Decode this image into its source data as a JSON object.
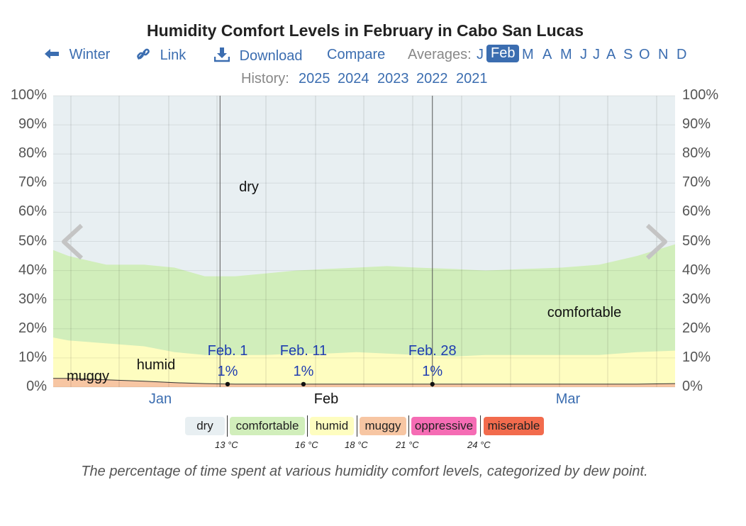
{
  "title": "Humidity Comfort Levels in February in Cabo San Lucas",
  "nav": {
    "winter": "Winter",
    "link": "Link",
    "download": "Download",
    "compare": "Compare",
    "averages_label": "Averages:",
    "months": [
      "J",
      "Feb",
      "M",
      "A",
      "M",
      "J",
      "J",
      "A",
      "S",
      "O",
      "N",
      "D"
    ],
    "selected_month": "Feb"
  },
  "history": {
    "label": "History:",
    "years": [
      "2025",
      "2024",
      "2023",
      "2022",
      "2021"
    ]
  },
  "icons": {
    "back": "arrow-left-icon",
    "link": "link-icon",
    "download": "download-icon",
    "prev": "chevron-left-icon",
    "next": "chevron-right-icon"
  },
  "colors": {
    "dry": "#e8eff2",
    "comfortable": "#d1eebb",
    "humid": "#fefdc0",
    "muggy": "#f7c6a3",
    "oppressive": "#f56cb4",
    "miserable": "#f26b4d",
    "link": "#3b6db0",
    "annotation": "#1f3db0"
  },
  "chart_data": {
    "type": "area",
    "title": "Humidity Comfort Levels in February in Cabo San Lucas",
    "y_ticks": [
      "0%",
      "10%",
      "20%",
      "30%",
      "40%",
      "50%",
      "60%",
      "70%",
      "80%",
      "90%",
      "100%"
    ],
    "ylim": [
      0,
      100
    ],
    "x_month_labels": [
      "Jan",
      "Feb",
      "Mar"
    ],
    "x_days": [
      -22,
      -20,
      -15,
      -10,
      -6,
      -2,
      2,
      6,
      10,
      14,
      18,
      22,
      26,
      31,
      35,
      40,
      45,
      50,
      55,
      60
    ],
    "series": [
      {
        "name": "muggy",
        "values": [
          3,
          3,
          2.5,
          2,
          1.5,
          1.2,
          1,
          1,
          1,
          1,
          1,
          1,
          1,
          1,
          1,
          1,
          1,
          1,
          1,
          1.2
        ]
      },
      {
        "name": "humid",
        "values": [
          17,
          16,
          15,
          14,
          12,
          11,
          11,
          11,
          11.5,
          11.5,
          12,
          11.5,
          11,
          10.5,
          11,
          11,
          11,
          11,
          12,
          12.5
        ]
      },
      {
        "name": "comfortable",
        "values": [
          47,
          45,
          42,
          42,
          41,
          38,
          38,
          39,
          40,
          40.5,
          41,
          41.5,
          41,
          40.5,
          40,
          40.5,
          41,
          42,
          45,
          49
        ]
      }
    ],
    "area_labels": [
      "dry",
      "comfortable",
      "humid",
      "muggy"
    ],
    "annotations": [
      {
        "date": "Feb. 1",
        "day": 1,
        "value": "1%"
      },
      {
        "date": "Feb. 11",
        "day": 11,
        "value": "1%"
      },
      {
        "date": "Feb. 28",
        "day": 28,
        "value": "1%"
      }
    ],
    "legend": {
      "categories": [
        "dry",
        "comfortable",
        "humid",
        "muggy",
        "oppressive",
        "miserable"
      ],
      "thresholds": [
        "13 °C",
        "16 °C",
        "18 °C",
        "21 °C",
        "24 °C"
      ]
    }
  },
  "caption": "The percentage of time spent at various humidity comfort levels, categorized by dew point."
}
